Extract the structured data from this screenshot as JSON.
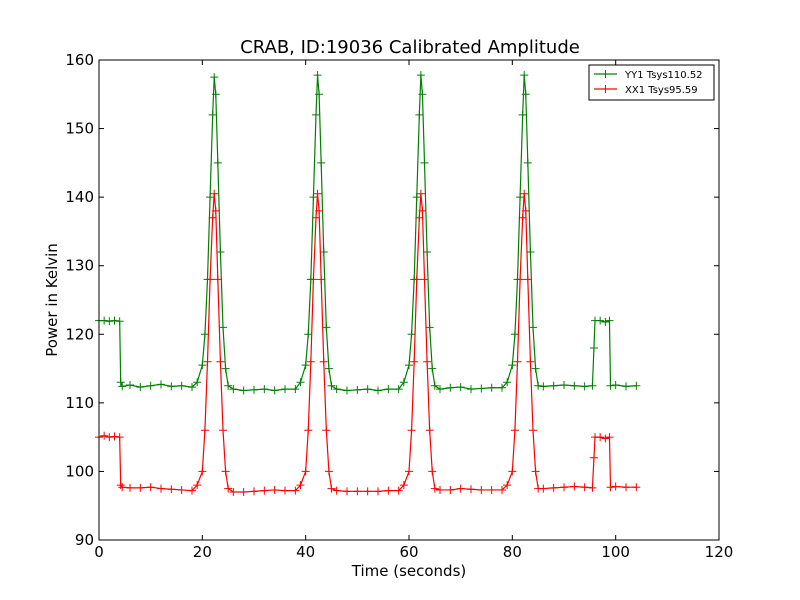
{
  "chart_data": {
    "type": "line",
    "title": "CRAB, ID:19036 Calibrated Amplitude",
    "xlabel": "Time (seconds)",
    "ylabel": "Power in Kelvin",
    "xlim": [
      0,
      120
    ],
    "ylim": [
      90,
      160
    ],
    "x_ticks": [
      "0",
      "20",
      "40",
      "60",
      "80",
      "100",
      "120"
    ],
    "y_ticks": [
      "90",
      "100",
      "110",
      "120",
      "130",
      "140",
      "150",
      "160"
    ],
    "grid": false,
    "legend_position": "top-right",
    "marker": "+",
    "series": [
      {
        "name": "YY1 Tsys110.52",
        "color": "#008000",
        "x": [
          0,
          1,
          2,
          3,
          4,
          4.2,
          4.5,
          6,
          8,
          10,
          12,
          14,
          16,
          18,
          19,
          20,
          20.5,
          21,
          21.5,
          22,
          22.3,
          22.6,
          23,
          23.5,
          24,
          24.5,
          25,
          26,
          28,
          30,
          32,
          34,
          36,
          38,
          39,
          40,
          40.5,
          41,
          41.5,
          42,
          42.3,
          42.6,
          43,
          43.5,
          44,
          44.5,
          45,
          46,
          48,
          50,
          52,
          54,
          56,
          58,
          59,
          60,
          60.5,
          61,
          61.5,
          62,
          62.3,
          62.6,
          63,
          63.5,
          64,
          64.5,
          65,
          66,
          68,
          70,
          72,
          74,
          76,
          78,
          79,
          80,
          80.5,
          81,
          81.5,
          82,
          82.3,
          82.6,
          83,
          83.5,
          84,
          84.5,
          85,
          86,
          88,
          90,
          92,
          94,
          95.5,
          95.8,
          96,
          97,
          98,
          98.8,
          99,
          100,
          102,
          104
        ],
        "y": [
          122,
          122,
          121.9,
          122,
          121.9,
          113,
          112.4,
          112.6,
          112.3,
          112.5,
          112.7,
          112.4,
          112.5,
          112.3,
          113,
          115.5,
          120,
          128,
          140,
          152,
          157.5,
          155,
          145,
          132,
          121,
          115,
          112.5,
          112,
          111.8,
          111.9,
          112,
          111.8,
          112,
          112,
          113,
          115.5,
          120,
          128,
          140,
          152,
          157.8,
          155,
          145,
          132,
          121,
          115,
          112.5,
          112,
          111.8,
          111.9,
          112,
          111.8,
          112,
          112,
          113,
          115.5,
          120,
          128,
          140,
          152,
          157.8,
          155,
          145,
          132,
          121,
          115,
          112.5,
          112,
          112.2,
          112.3,
          112,
          112.1,
          112.2,
          112.2,
          113,
          115.5,
          120,
          128,
          140,
          152,
          157.8,
          155,
          145,
          132,
          121,
          115,
          112.5,
          112.4,
          112.5,
          112.6,
          112.5,
          112.4,
          112.5,
          118,
          122,
          122,
          121.8,
          122,
          112.5,
          112.6,
          112.4,
          112.5
        ]
      },
      {
        "name": "XX1 Tsys95.59",
        "color": "#ff0000",
        "x": [
          0,
          1,
          2,
          3,
          4,
          4.2,
          4.5,
          6,
          8,
          10,
          12,
          14,
          16,
          18,
          19,
          20,
          20.5,
          21,
          21.5,
          22,
          22.3,
          22.6,
          23,
          23.5,
          24,
          24.5,
          25,
          26,
          28,
          30,
          32,
          34,
          36,
          38,
          39,
          40,
          40.5,
          41,
          41.5,
          42,
          42.3,
          42.6,
          43,
          43.5,
          44,
          44.5,
          45,
          46,
          48,
          50,
          52,
          54,
          56,
          58,
          59,
          60,
          60.5,
          61,
          61.5,
          62,
          62.3,
          62.6,
          63,
          63.5,
          64,
          64.5,
          65,
          66,
          68,
          70,
          72,
          74,
          76,
          78,
          79,
          80,
          80.5,
          81,
          81.5,
          82,
          82.3,
          82.6,
          83,
          83.5,
          84,
          84.5,
          85,
          86,
          88,
          90,
          92,
          94,
          95.5,
          95.8,
          96,
          97,
          98,
          98.8,
          99,
          100,
          102,
          104
        ],
        "y": [
          105,
          105.2,
          105,
          105.1,
          105,
          98,
          97.7,
          97.6,
          97.6,
          97.7,
          97.5,
          97.4,
          97.3,
          97.2,
          98,
          100,
          106,
          116,
          128,
          137,
          140.5,
          138,
          128,
          116,
          106,
          100,
          97.5,
          97,
          97,
          97.1,
          97.2,
          97.3,
          97.2,
          97.2,
          98,
          100,
          106,
          116,
          128,
          137,
          140.5,
          138,
          128,
          116,
          106,
          100,
          97.5,
          97.2,
          97.1,
          97.1,
          97.1,
          97.1,
          97.2,
          97.2,
          98,
          100,
          106,
          116,
          128,
          137,
          140.5,
          138,
          128,
          116,
          106,
          100,
          97.5,
          97.3,
          97.3,
          97.5,
          97.4,
          97.3,
          97.3,
          97.3,
          98,
          100,
          106,
          116,
          128,
          137,
          140.5,
          138,
          128,
          116,
          106,
          100,
          97.5,
          97.5,
          97.6,
          97.7,
          97.8,
          97.7,
          97.6,
          102,
          105,
          105,
          104.8,
          105,
          97.7,
          97.8,
          97.7,
          97.7
        ]
      }
    ]
  }
}
